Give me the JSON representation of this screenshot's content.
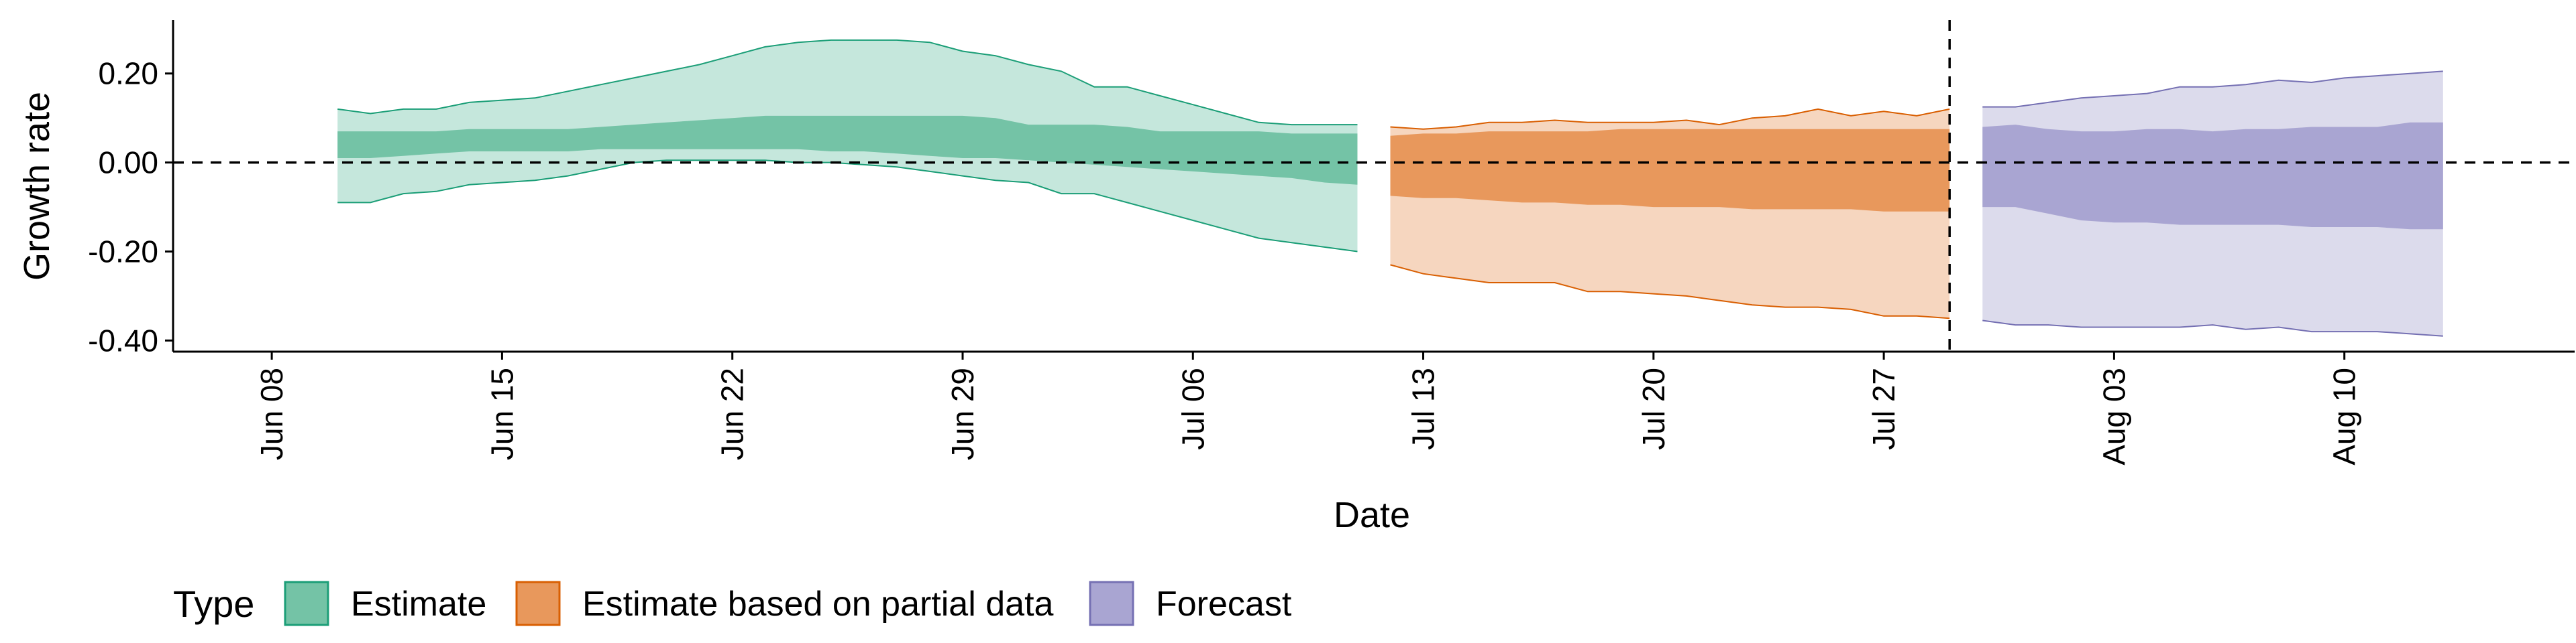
{
  "chart_data": {
    "type": "area",
    "xlabel": "Date",
    "ylabel": "Growth rate",
    "x_range": [
      "2020-06-05",
      "2020-08-17"
    ],
    "ylim": [
      -0.425,
      0.32
    ],
    "x_ticks": [
      {
        "date": "2020-06-08",
        "label": "Jun 08"
      },
      {
        "date": "2020-06-15",
        "label": "Jun 15"
      },
      {
        "date": "2020-06-22",
        "label": "Jun 22"
      },
      {
        "date": "2020-06-29",
        "label": "Jun 29"
      },
      {
        "date": "2020-07-06",
        "label": "Jul 06"
      },
      {
        "date": "2020-07-13",
        "label": "Jul 13"
      },
      {
        "date": "2020-07-20",
        "label": "Jul 20"
      },
      {
        "date": "2020-07-27",
        "label": "Jul 27"
      },
      {
        "date": "2020-08-03",
        "label": "Aug 03"
      },
      {
        "date": "2020-08-10",
        "label": "Aug 10"
      }
    ],
    "y_ticks": [
      {
        "value": 0.2,
        "label": "0.20"
      },
      {
        "value": 0.0,
        "label": "0.00"
      },
      {
        "value": -0.2,
        "label": "-0.20"
      },
      {
        "value": -0.4,
        "label": "-0.40"
      }
    ],
    "reference_lines": {
      "horizontal_y": 0.0,
      "vertical_date": "2020-07-29"
    },
    "grid": false,
    "legend_position": "bottom-left",
    "legend_title": "Type",
    "series": [
      {
        "name": "Estimate",
        "color_outer": "#c5e7dc",
        "color_inner": "#74c3a6",
        "color_line": "#1b9e77",
        "dates": [
          "2020-06-10",
          "2020-06-11",
          "2020-06-12",
          "2020-06-13",
          "2020-06-14",
          "2020-06-15",
          "2020-06-16",
          "2020-06-17",
          "2020-06-18",
          "2020-06-19",
          "2020-06-20",
          "2020-06-21",
          "2020-06-22",
          "2020-06-23",
          "2020-06-24",
          "2020-06-25",
          "2020-06-26",
          "2020-06-27",
          "2020-06-28",
          "2020-06-29",
          "2020-06-30",
          "2020-07-01",
          "2020-07-02",
          "2020-07-03",
          "2020-07-04",
          "2020-07-05",
          "2020-07-06",
          "2020-07-07",
          "2020-07-08",
          "2020-07-09",
          "2020-07-10",
          "2020-07-11"
        ],
        "outer_upper": [
          0.12,
          0.11,
          0.12,
          0.12,
          0.135,
          0.14,
          0.145,
          0.16,
          0.175,
          0.19,
          0.205,
          0.22,
          0.24,
          0.26,
          0.27,
          0.275,
          0.275,
          0.275,
          0.27,
          0.25,
          0.24,
          0.22,
          0.205,
          0.17,
          0.17,
          0.15,
          0.13,
          0.11,
          0.09,
          0.085,
          0.085,
          0.085
        ],
        "outer_lower": [
          -0.09,
          -0.09,
          -0.07,
          -0.065,
          -0.05,
          -0.045,
          -0.04,
          -0.03,
          -0.015,
          0.0,
          0.005,
          0.005,
          0.005,
          0.005,
          0.0,
          0.0,
          -0.005,
          -0.01,
          -0.02,
          -0.03,
          -0.04,
          -0.045,
          -0.07,
          -0.07,
          -0.09,
          -0.11,
          -0.13,
          -0.15,
          -0.17,
          -0.18,
          -0.19,
          -0.2
        ],
        "inner_upper": [
          0.07,
          0.07,
          0.07,
          0.07,
          0.075,
          0.075,
          0.075,
          0.075,
          0.08,
          0.085,
          0.09,
          0.095,
          0.1,
          0.105,
          0.105,
          0.105,
          0.105,
          0.105,
          0.105,
          0.105,
          0.1,
          0.085,
          0.085,
          0.085,
          0.08,
          0.07,
          0.07,
          0.07,
          0.07,
          0.065,
          0.065,
          0.065
        ],
        "inner_lower": [
          0.01,
          0.01,
          0.015,
          0.02,
          0.025,
          0.025,
          0.025,
          0.025,
          0.03,
          0.03,
          0.03,
          0.03,
          0.03,
          0.03,
          0.03,
          0.025,
          0.025,
          0.02,
          0.015,
          0.01,
          0.01,
          0.005,
          0.0,
          -0.005,
          -0.01,
          -0.015,
          -0.02,
          -0.025,
          -0.03,
          -0.035,
          -0.045,
          -0.05
        ]
      },
      {
        "name": "Estimate based on partial data",
        "color_outer": "#f6d6bf",
        "color_inner": "#e8985c",
        "color_line": "#d95f02",
        "dates": [
          "2020-07-12",
          "2020-07-13",
          "2020-07-14",
          "2020-07-15",
          "2020-07-16",
          "2020-07-17",
          "2020-07-18",
          "2020-07-19",
          "2020-07-20",
          "2020-07-21",
          "2020-07-22",
          "2020-07-23",
          "2020-07-24",
          "2020-07-25",
          "2020-07-26",
          "2020-07-27",
          "2020-07-28",
          "2020-07-29"
        ],
        "outer_upper": [
          0.08,
          0.075,
          0.08,
          0.09,
          0.09,
          0.095,
          0.09,
          0.09,
          0.09,
          0.095,
          0.085,
          0.1,
          0.105,
          0.12,
          0.105,
          0.115,
          0.105,
          0.12
        ],
        "outer_lower": [
          -0.23,
          -0.25,
          -0.26,
          -0.27,
          -0.27,
          -0.27,
          -0.29,
          -0.29,
          -0.295,
          -0.3,
          -0.31,
          -0.32,
          -0.325,
          -0.325,
          -0.33,
          -0.345,
          -0.345,
          -0.35
        ],
        "inner_upper": [
          0.06,
          0.065,
          0.065,
          0.07,
          0.07,
          0.07,
          0.07,
          0.075,
          0.075,
          0.075,
          0.075,
          0.075,
          0.075,
          0.075,
          0.075,
          0.075,
          0.075,
          0.075
        ],
        "inner_lower": [
          -0.075,
          -0.08,
          -0.08,
          -0.085,
          -0.09,
          -0.09,
          -0.095,
          -0.095,
          -0.1,
          -0.1,
          -0.1,
          -0.105,
          -0.105,
          -0.105,
          -0.105,
          -0.11,
          -0.11,
          -0.11
        ]
      },
      {
        "name": "Forecast",
        "color_outer": "#dcdbec",
        "color_inner": "#a9a5d2",
        "color_line": "#7570b3",
        "dates": [
          "2020-07-30",
          "2020-07-31",
          "2020-08-01",
          "2020-08-02",
          "2020-08-03",
          "2020-08-04",
          "2020-08-05",
          "2020-08-06",
          "2020-08-07",
          "2020-08-08",
          "2020-08-09",
          "2020-08-10",
          "2020-08-11",
          "2020-08-12",
          "2020-08-13"
        ],
        "outer_upper": [
          0.125,
          0.125,
          0.135,
          0.145,
          0.15,
          0.155,
          0.17,
          0.17,
          0.175,
          0.185,
          0.18,
          0.19,
          0.195,
          0.2,
          0.205
        ],
        "outer_lower": [
          -0.355,
          -0.365,
          -0.365,
          -0.37,
          -0.37,
          -0.37,
          -0.37,
          -0.365,
          -0.375,
          -0.37,
          -0.38,
          -0.38,
          -0.38,
          -0.385,
          -0.39
        ],
        "inner_upper": [
          0.08,
          0.085,
          0.075,
          0.07,
          0.07,
          0.075,
          0.075,
          0.07,
          0.075,
          0.075,
          0.08,
          0.08,
          0.08,
          0.09,
          0.09
        ],
        "inner_lower": [
          -0.1,
          -0.1,
          -0.115,
          -0.13,
          -0.135,
          -0.135,
          -0.14,
          -0.14,
          -0.14,
          -0.14,
          -0.145,
          -0.145,
          -0.145,
          -0.15,
          -0.15
        ]
      }
    ]
  }
}
